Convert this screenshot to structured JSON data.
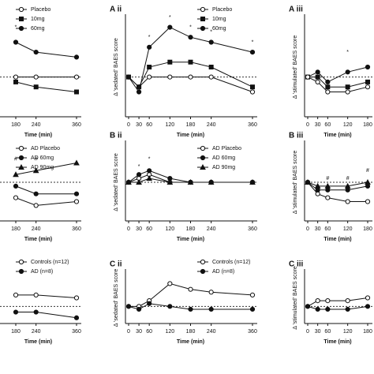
{
  "chart_data": [
    {
      "type": "line",
      "x_label": "Time (min)",
      "xlim": [
        0,
        360
      ],
      "ylim": [
        -8,
        12
      ],
      "xticks": [
        180,
        240,
        360
      ],
      "hline": 0,
      "x": [
        180,
        240,
        360
      ],
      "series": [
        {
          "name": "Placebo",
          "marker": "circle-open",
          "color": "#111111",
          "values": [
            0,
            0,
            0
          ]
        },
        {
          "name": "10mg",
          "marker": "square",
          "color": "#111111",
          "values": [
            -1,
            -2,
            -3
          ]
        },
        {
          "name": "60mg",
          "marker": "circle",
          "color": "#111111",
          "values": [
            7,
            5,
            4
          ]
        }
      ],
      "annotations": [
        {
          "text": "*",
          "x": 180,
          "y": 10
        }
      ]
    },
    {
      "type": "line",
      "title": "A ii",
      "y_label": "Δ 'sedated' BAES score",
      "x_label": "Time (min)",
      "xlim": [
        0,
        360
      ],
      "ylim": [
        -8,
        12
      ],
      "xticks": [
        0,
        30,
        60,
        120,
        180,
        240,
        360
      ],
      "hline": 0,
      "x": [
        0,
        30,
        60,
        120,
        180,
        240,
        360
      ],
      "series": [
        {
          "name": "Placebo",
          "marker": "circle-open",
          "color": "#111111",
          "values": [
            0,
            -2,
            0,
            0,
            0,
            0,
            -3
          ]
        },
        {
          "name": "10mg",
          "marker": "square",
          "color": "#111111",
          "values": [
            0,
            -2,
            2,
            3,
            3,
            2,
            -2
          ]
        },
        {
          "name": "60mg",
          "marker": "circle",
          "color": "#111111",
          "values": [
            0,
            -3,
            6,
            10,
            8,
            7,
            5
          ]
        }
      ],
      "annotations": [
        {
          "text": "*",
          "x": 60,
          "y": 8
        },
        {
          "text": "*",
          "x": 120,
          "y": 12
        },
        {
          "text": "*",
          "x": 180,
          "y": 10
        },
        {
          "text": "*",
          "x": 240,
          "y": 9
        },
        {
          "text": "*",
          "x": 360,
          "y": 7
        }
      ]
    },
    {
      "type": "line",
      "title": "A iii",
      "y_label": "Δ 'stimulated' BAES score",
      "x_label": "Time (min)",
      "xlim": [
        0,
        180
      ],
      "ylim": [
        -8,
        12
      ],
      "xticks": [
        0,
        30,
        60,
        120,
        180
      ],
      "hline": 0,
      "x": [
        0,
        30,
        60,
        120,
        180
      ],
      "series": [
        {
          "marker": "circle",
          "color": "#111111",
          "values": [
            0,
            1,
            -1,
            1,
            2
          ]
        },
        {
          "marker": "square",
          "color": "#111111",
          "values": [
            0,
            0,
            -2,
            -2,
            -1
          ]
        },
        {
          "marker": "circle-open",
          "color": "#111111",
          "values": [
            0,
            -1,
            -3,
            -3,
            -2
          ]
        }
      ],
      "annotations": [
        {
          "text": "*",
          "x": 120,
          "y": 5
        }
      ]
    },
    {
      "type": "line",
      "x_label": "Time (min)",
      "xlim": [
        0,
        360
      ],
      "ylim": [
        -10,
        10
      ],
      "xticks": [
        180,
        240,
        360
      ],
      "hline": 0,
      "x": [
        180,
        240,
        360
      ],
      "series": [
        {
          "name": "AD Placebo",
          "marker": "circle-open",
          "color": "#111111",
          "values": [
            -4,
            -6,
            -5
          ]
        },
        {
          "name": "AD 60mg",
          "marker": "circle",
          "color": "#111111",
          "values": [
            -1,
            -3,
            -3
          ]
        },
        {
          "name": "AD 90mg",
          "marker": "triangle",
          "color": "#111111",
          "values": [
            2,
            3,
            5
          ]
        }
      ],
      "annotations": [
        {
          "text": "#",
          "x": 180,
          "y": 6
        },
        {
          "text": "#",
          "x": 240,
          "y": 6
        }
      ]
    },
    {
      "type": "line",
      "title": "B ii",
      "y_label": "Δ 'sedated' BAES score",
      "x_label": "Time (min)",
      "xlim": [
        0,
        360
      ],
      "ylim": [
        -10,
        10
      ],
      "xticks": [
        0,
        30,
        60,
        120,
        180,
        240,
        360
      ],
      "hline": 0,
      "x": [
        0,
        30,
        60,
        120,
        180,
        240,
        360
      ],
      "series": [
        {
          "name": "AD Placebo",
          "marker": "circle-open",
          "color": "#111111",
          "values": [
            0,
            1,
            2,
            0,
            0,
            0,
            0
          ]
        },
        {
          "name": "AD 60mg",
          "marker": "circle",
          "color": "#111111",
          "values": [
            0,
            2,
            3,
            1,
            0,
            0,
            0
          ]
        },
        {
          "name": "AD 90mg",
          "marker": "triangle",
          "color": "#111111",
          "values": [
            0,
            0,
            1,
            0,
            0,
            0,
            0
          ]
        }
      ],
      "annotations": [
        {
          "text": "*",
          "x": 30,
          "y": 4
        },
        {
          "text": "*",
          "x": 60,
          "y": 6
        }
      ]
    },
    {
      "type": "line",
      "title": "B iii",
      "y_label": "Δ 'stimulated' BAES score",
      "x_label": "Time (min)",
      "xlim": [
        0,
        180
      ],
      "ylim": [
        -10,
        10
      ],
      "xticks": [
        0,
        30,
        60,
        120,
        180
      ],
      "hline": 0,
      "x": [
        0,
        30,
        60,
        120,
        180
      ],
      "series": [
        {
          "marker": "circle-open",
          "color": "#111111",
          "values": [
            0,
            -3,
            -4,
            -5,
            -5
          ]
        },
        {
          "marker": "circle",
          "color": "#111111",
          "values": [
            0,
            -2,
            -2,
            -2,
            -1
          ]
        },
        {
          "marker": "triangle",
          "color": "#111111",
          "values": [
            0,
            -1,
            -1,
            -1,
            0
          ]
        }
      ],
      "annotations": [
        {
          "text": "#",
          "x": 60,
          "y": 1
        },
        {
          "text": "#",
          "x": 120,
          "y": 1
        },
        {
          "text": "#",
          "x": 180,
          "y": 3
        }
      ]
    },
    {
      "type": "line",
      "x_label": "Time (min)",
      "xlim": [
        0,
        360
      ],
      "ylim": [
        -6,
        12
      ],
      "xticks": [
        180,
        240,
        360
      ],
      "hline": 0,
      "x": [
        180,
        240,
        360
      ],
      "series": [
        {
          "name": "Controls (n=12)",
          "marker": "circle-open",
          "color": "#111111",
          "values": [
            4,
            4,
            3
          ]
        },
        {
          "name": "AD (n=8)",
          "marker": "circle",
          "color": "#111111",
          "values": [
            -2,
            -2,
            -4
          ]
        }
      ]
    },
    {
      "type": "line",
      "title": "C ii",
      "y_label": "Δ 'sedated' BAES score",
      "x_label": "Time (min)",
      "xlim": [
        0,
        360
      ],
      "ylim": [
        -6,
        12
      ],
      "xticks": [
        0,
        30,
        60,
        120,
        180,
        240,
        360
      ],
      "hline": 0,
      "x": [
        0,
        30,
        60,
        120,
        180,
        240,
        360
      ],
      "series": [
        {
          "name": "Controls (n=12)",
          "marker": "circle-open",
          "color": "#111111",
          "values": [
            0,
            0,
            2,
            8,
            6,
            5,
            4
          ]
        },
        {
          "name": "AD (n=8)",
          "marker": "circle",
          "color": "#111111",
          "values": [
            0,
            -1,
            1,
            0,
            -1,
            -1,
            -1
          ]
        }
      ]
    },
    {
      "type": "line",
      "title": "C iii",
      "y_label": "Δ 'stimulated' BAES score",
      "x_label": "Time (min)",
      "xlim": [
        0,
        180
      ],
      "ylim": [
        -6,
        12
      ],
      "xticks": [
        0,
        30,
        60,
        120,
        180
      ],
      "hline": 0,
      "x": [
        0,
        30,
        60,
        120,
        180
      ],
      "series": [
        {
          "marker": "circle-open",
          "color": "#111111",
          "values": [
            0,
            2,
            2,
            2,
            3
          ]
        },
        {
          "marker": "circle",
          "color": "#111111",
          "values": [
            0,
            -1,
            -1,
            -1,
            0
          ]
        }
      ]
    }
  ]
}
